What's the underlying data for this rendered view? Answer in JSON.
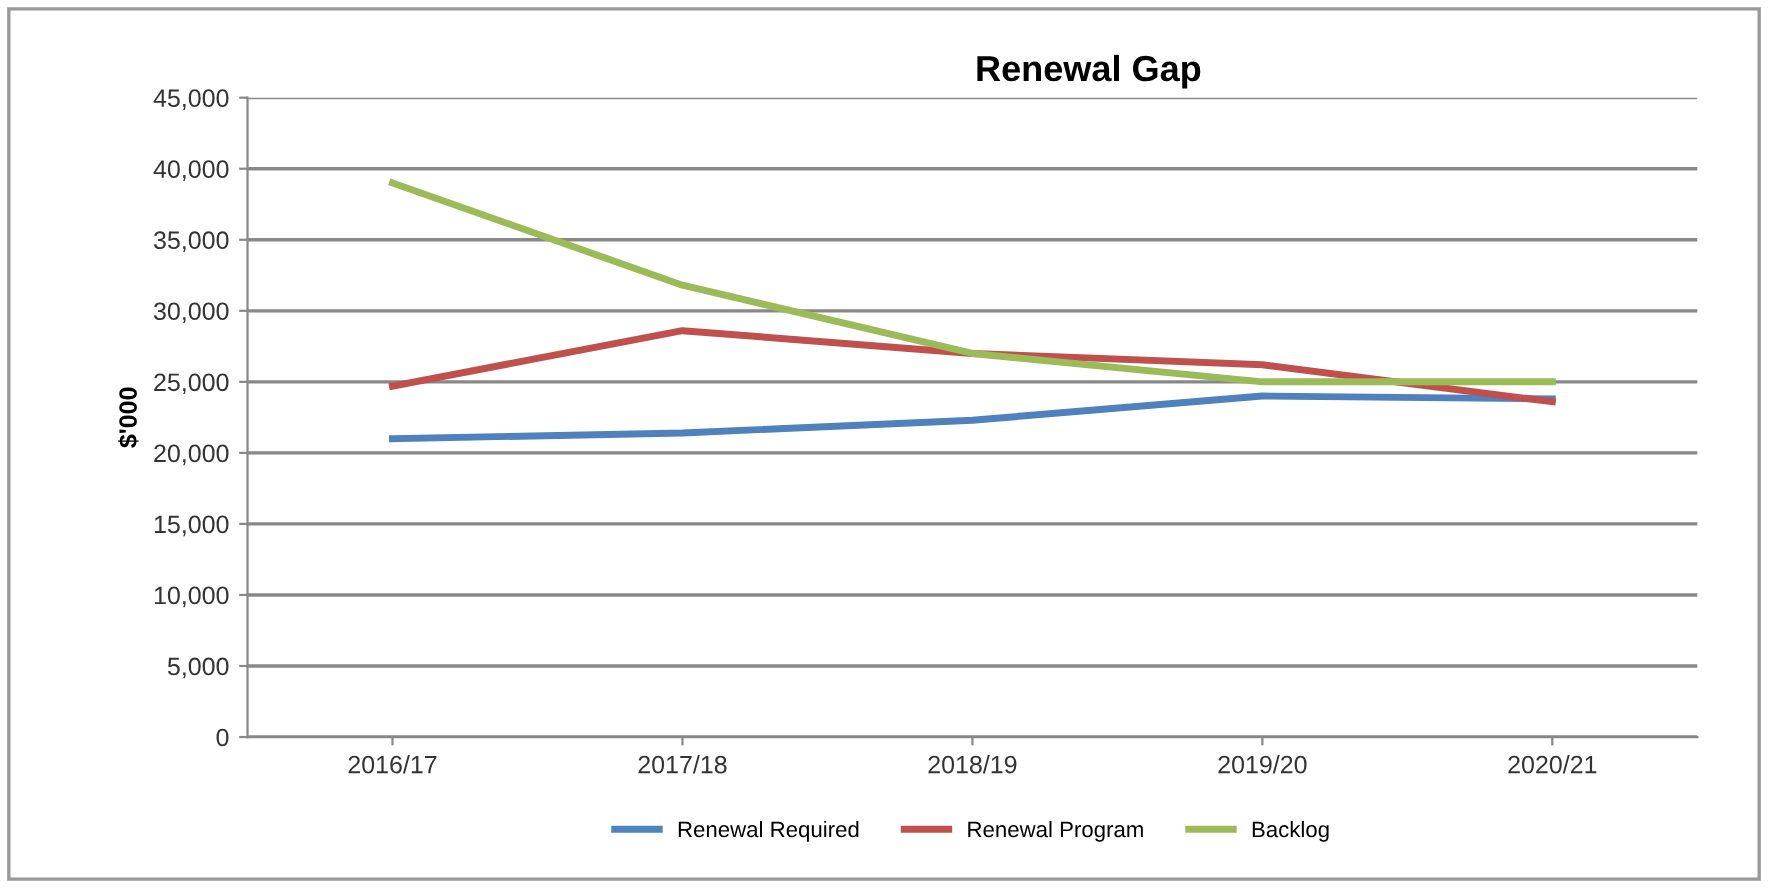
{
  "chart_data": {
    "type": "line",
    "title": "Renewal Gap",
    "ylabel": "$'000",
    "categories": [
      "2016/17",
      "2017/18",
      "2018/19",
      "2019/20",
      "2020/21"
    ],
    "series": [
      {
        "name": "Renewal Required",
        "color": "#4f81bd",
        "values": [
          21000,
          21400,
          22300,
          24000,
          23800
        ]
      },
      {
        "name": "Renewal Program",
        "color": "#c0504d",
        "values": [
          24700,
          28600,
          27000,
          26200,
          23600
        ]
      },
      {
        "name": "Backlog",
        "color": "#9bbb59",
        "values": [
          39000,
          31800,
          27000,
          25000,
          25000
        ]
      }
    ],
    "ylim": [
      0,
      45000
    ],
    "yticks": [
      {
        "value": 0,
        "label": "0"
      },
      {
        "value": 5000,
        "label": "5,000"
      },
      {
        "value": 10000,
        "label": "10,000"
      },
      {
        "value": 15000,
        "label": "15,000"
      },
      {
        "value": 20000,
        "label": "20,000"
      },
      {
        "value": 25000,
        "label": "25,000"
      },
      {
        "value": 30000,
        "label": "30,000"
      },
      {
        "value": 35000,
        "label": "35,000"
      },
      {
        "value": 40000,
        "label": "40,000"
      },
      {
        "value": 45000,
        "label": "45,000"
      }
    ],
    "grid": "y",
    "legend": "bottom",
    "marker": "none",
    "line_style": "solid"
  }
}
